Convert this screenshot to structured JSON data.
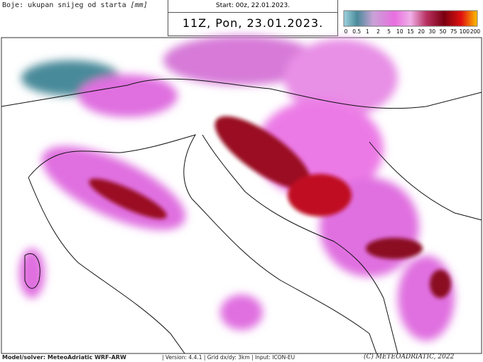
{
  "header": {
    "legend_title": "Boje: ukupan snijeg od starta",
    "legend_unit": "[mm]",
    "start": "Start: 00z, 22.01.2023.",
    "valid": "11Z, Pon, 23.01.2023."
  },
  "colorbar": {
    "labels": [
      "0",
      "0.5",
      "1",
      "2",
      "5",
      "10",
      "15",
      "20",
      "30",
      "50",
      "75",
      "100",
      "200"
    ]
  },
  "footer": {
    "model": "Model/solver: MeteoAdriatic WRF-ARW",
    "version": "Version: 4.4.1",
    "grid": "Grid dx/dy: 3km",
    "input": "Input: ICON-EU",
    "copyright": "(C) METEOADRIATIC, 2022"
  }
}
